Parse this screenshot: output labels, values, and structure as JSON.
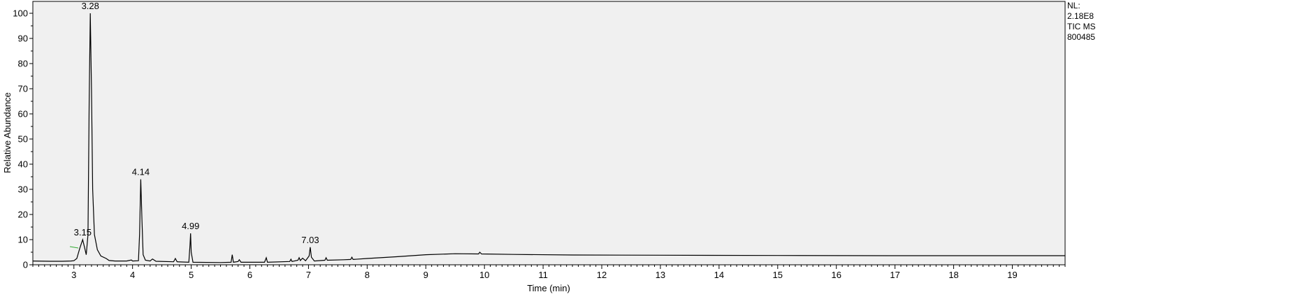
{
  "chart_data": {
    "type": "line",
    "title": "",
    "xlabel": "Time (min)",
    "ylabel": "Relative Abundance",
    "xlim": [
      2.3,
      19.9
    ],
    "ylim": [
      0,
      100
    ],
    "x_ticks": [
      3,
      4,
      5,
      6,
      7,
      8,
      9,
      10,
      11,
      12,
      13,
      14,
      15,
      16,
      17,
      18,
      19
    ],
    "y_ticks": [
      0,
      10,
      20,
      30,
      40,
      50,
      60,
      70,
      80,
      90,
      100
    ],
    "grid": false,
    "legend": "none",
    "side_info": [
      "NL:",
      "2.18E8",
      "TIC  MS",
      "800485"
    ],
    "peak_labels": [
      {
        "x": 3.15,
        "y": 10,
        "label": "3.15"
      },
      {
        "x": 3.28,
        "y": 100,
        "label": "3.28"
      },
      {
        "x": 4.14,
        "y": 34,
        "label": "4.14"
      },
      {
        "x": 4.99,
        "y": 12.5,
        "label": "4.99"
      },
      {
        "x": 7.03,
        "y": 7,
        "label": "7.03"
      }
    ],
    "series": [
      {
        "values": [
          [
            2.3,
            1.5
          ],
          [
            2.6,
            1.4
          ],
          [
            2.8,
            1.4
          ],
          [
            2.95,
            1.5
          ],
          [
            3.0,
            1.6
          ],
          [
            3.05,
            2.5
          ],
          [
            3.1,
            6.5
          ],
          [
            3.15,
            10.0
          ],
          [
            3.18,
            7.0
          ],
          [
            3.21,
            4.0
          ],
          [
            3.24,
            12.0
          ],
          [
            3.26,
            65.0
          ],
          [
            3.28,
            100.0
          ],
          [
            3.3,
            70.0
          ],
          [
            3.32,
            30.0
          ],
          [
            3.35,
            12.0
          ],
          [
            3.4,
            6.0
          ],
          [
            3.46,
            3.5
          ],
          [
            3.55,
            2.5
          ],
          [
            3.6,
            1.7
          ],
          [
            3.7,
            1.5
          ],
          [
            3.9,
            1.5
          ],
          [
            3.98,
            1.9
          ],
          [
            4.0,
            1.5
          ],
          [
            4.1,
            1.6
          ],
          [
            4.12,
            12.0
          ],
          [
            4.14,
            34.0
          ],
          [
            4.16,
            18.0
          ],
          [
            4.18,
            4.0
          ],
          [
            4.22,
            1.8
          ],
          [
            4.3,
            1.5
          ],
          [
            4.34,
            2.3
          ],
          [
            4.4,
            1.4
          ],
          [
            4.7,
            1.2
          ],
          [
            4.73,
            2.5
          ],
          [
            4.76,
            1.2
          ],
          [
            4.96,
            1.0
          ],
          [
            4.98,
            8.0
          ],
          [
            4.99,
            12.5
          ],
          [
            5.0,
            5.0
          ],
          [
            5.03,
            1.0
          ],
          [
            5.5,
            0.9
          ],
          [
            5.68,
            1.0
          ],
          [
            5.7,
            4.0
          ],
          [
            5.72,
            1.0
          ],
          [
            5.8,
            1.3
          ],
          [
            5.82,
            2.0
          ],
          [
            5.85,
            1.0
          ],
          [
            6.25,
            1.0
          ],
          [
            6.28,
            2.8
          ],
          [
            6.3,
            1.0
          ],
          [
            6.68,
            1.3
          ],
          [
            6.7,
            2.2
          ],
          [
            6.72,
            1.3
          ],
          [
            6.82,
            1.8
          ],
          [
            6.84,
            2.8
          ],
          [
            6.86,
            1.7
          ],
          [
            6.9,
            2.6
          ],
          [
            6.95,
            1.6
          ],
          [
            7.01,
            3.5
          ],
          [
            7.03,
            7.0
          ],
          [
            7.05,
            3.0
          ],
          [
            7.1,
            1.5
          ],
          [
            7.28,
            1.8
          ],
          [
            7.3,
            2.8
          ],
          [
            7.32,
            1.8
          ],
          [
            7.6,
            2.0
          ],
          [
            7.72,
            2.1
          ],
          [
            7.74,
            3.0
          ],
          [
            7.76,
            2.1
          ],
          [
            8.0,
            2.5
          ],
          [
            8.5,
            3.2
          ],
          [
            9.0,
            4.0
          ],
          [
            9.5,
            4.4
          ],
          [
            9.9,
            4.3
          ],
          [
            9.92,
            5.0
          ],
          [
            9.95,
            4.3
          ],
          [
            10.5,
            4.1
          ],
          [
            11.5,
            3.9
          ],
          [
            13.0,
            3.8
          ],
          [
            15.0,
            3.7
          ],
          [
            17.0,
            3.6
          ],
          [
            19.0,
            3.6
          ],
          [
            19.9,
            3.6
          ]
        ]
      }
    ]
  }
}
